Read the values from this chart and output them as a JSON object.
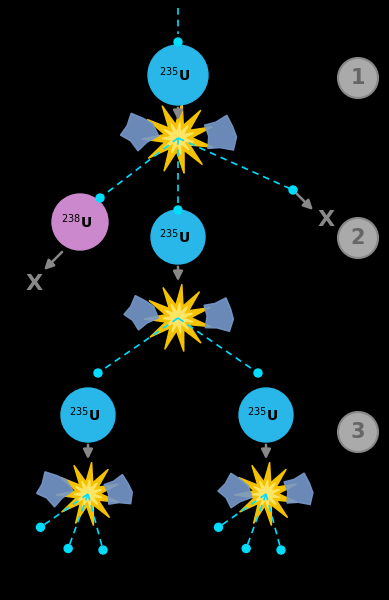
{
  "background_color": "#000000",
  "u235_color": "#29b6e8",
  "u238_color": "#cc88cc",
  "neutron_color": "#00ddff",
  "explosion_outer": "#f5c200",
  "explosion_inner": "#ffe566",
  "fragment_color": "#7799cc",
  "arrow_color": "#888888",
  "label_circle_color": "#aaaaaa",
  "label_circle_edge": "#888888",
  "label_text_color": "#666666",
  "x_color": "#888888",
  "u235_label": "$^{235}$U",
  "u238_label": "$^{238}$U",
  "stage_labels": [
    "1",
    "2",
    "3"
  ]
}
